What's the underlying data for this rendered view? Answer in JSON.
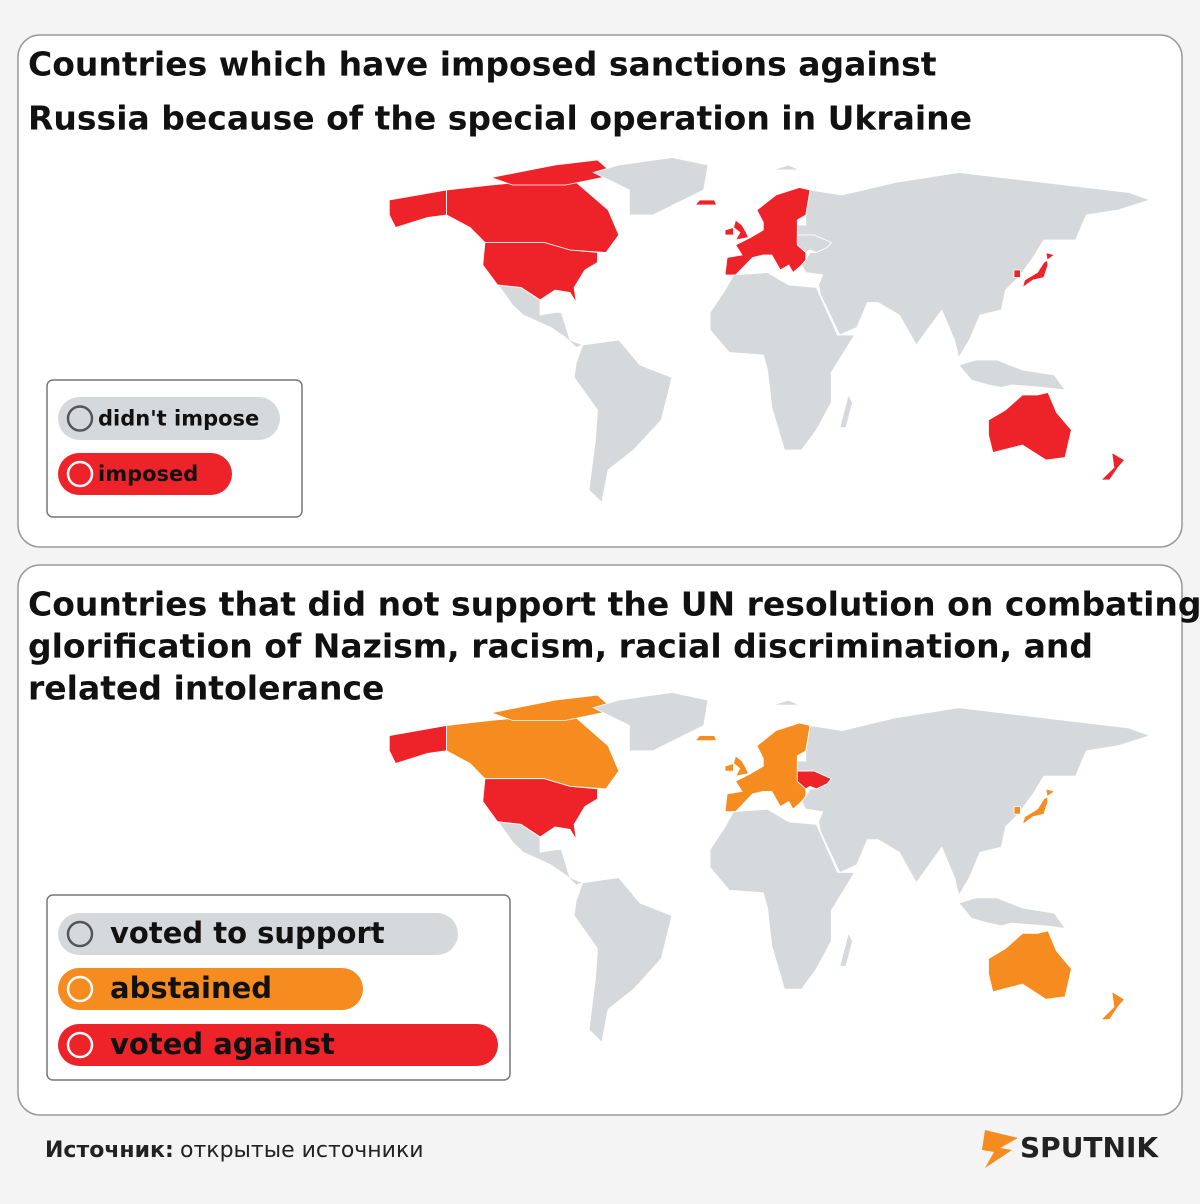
{
  "panels": [
    {
      "title": [
        "Countries which have imposed sanctions against",
        "Russia because of the special operation in Ukraine"
      ],
      "legend": [
        {
          "label": "didn't impose",
          "color": "#d6d9dc"
        },
        {
          "label": "imposed",
          "color": "#ee2229"
        }
      ]
    },
    {
      "title": [
        "Countries that did not support the UN resolution on combating",
        "glorification of Nazism, racism, racial discrimination, and",
        "related intolerance"
      ],
      "legend": [
        {
          "label": "voted to support",
          "color": "#d6d9dc"
        },
        {
          "label": "abstained",
          "color": "#f68b1f"
        },
        {
          "label": "voted against",
          "color": "#ee2229"
        }
      ]
    }
  ],
  "footer": {
    "source_label": "Источник:",
    "source_text": "открытые источники",
    "brand": "SPUTNIK"
  }
}
